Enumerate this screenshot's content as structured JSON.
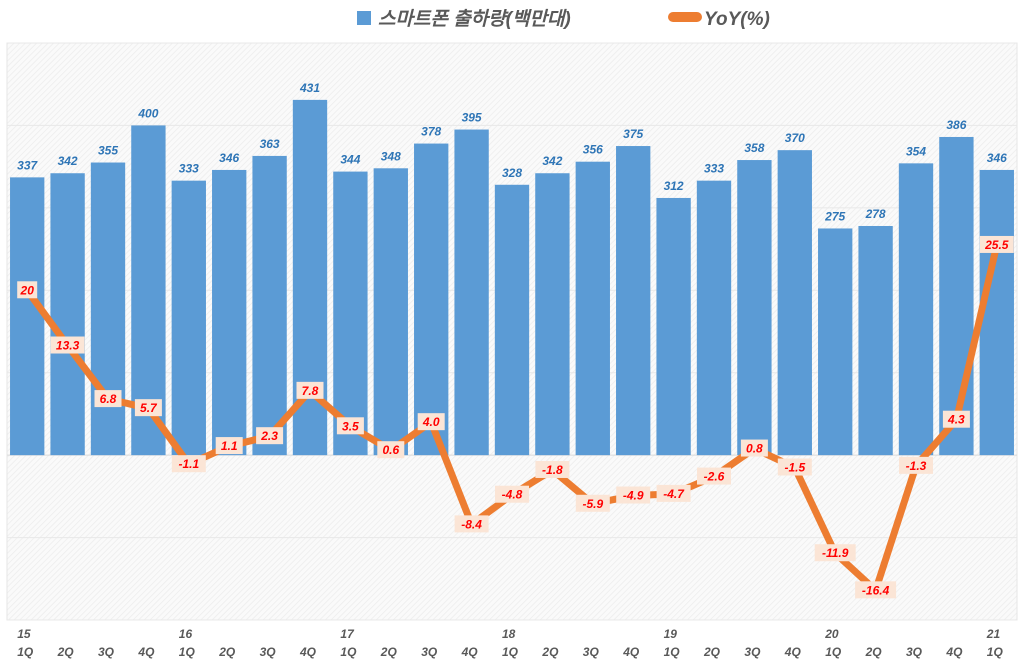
{
  "chart_data": {
    "type": "bar+line",
    "title": "",
    "legend": {
      "placement": "top",
      "entries": [
        "스마트폰 출하량(백만대)",
        "YoY(%)"
      ]
    },
    "categories": [
      "1Q",
      "2Q",
      "3Q",
      "4Q",
      "1Q",
      "2Q",
      "3Q",
      "4Q",
      "1Q",
      "2Q",
      "3Q",
      "4Q",
      "1Q",
      "2Q",
      "3Q",
      "4Q",
      "1Q",
      "2Q",
      "3Q",
      "4Q",
      "1Q",
      "2Q",
      "3Q",
      "4Q",
      "1Q"
    ],
    "year_labels": [
      "15",
      "",
      "",
      "",
      "16",
      "",
      "",
      "",
      "17",
      "",
      "",
      "",
      "18",
      "",
      "",
      "",
      "19",
      "",
      "",
      "",
      "20",
      "",
      "",
      "",
      "21"
    ],
    "series": [
      {
        "name": "스마트폰 출하량(백만대)",
        "type": "bar",
        "axis": "primary",
        "color": "#5b9bd5",
        "values": [
          337,
          342,
          355,
          400,
          333,
          346,
          363,
          431,
          344,
          348,
          378,
          395,
          328,
          342,
          356,
          375,
          312,
          333,
          358,
          370,
          275,
          278,
          354,
          386,
          346
        ]
      },
      {
        "name": "YoY(%)",
        "type": "line",
        "axis": "secondary",
        "color": "#ed7d31",
        "values": [
          20,
          13.3,
          6.8,
          5.7,
          -1.1,
          1.1,
          2.3,
          7.8,
          3.5,
          0.6,
          4.0,
          -8.4,
          -4.8,
          -1.8,
          -5.9,
          -4.9,
          -4.7,
          -2.6,
          0.8,
          -1.5,
          -11.9,
          -16.4,
          -1.3,
          4.3,
          25.5
        ],
        "labels": [
          "20",
          "13.3",
          "6.8",
          "5.7",
          "-1.1",
          "1.1",
          "2.3",
          "7.8",
          "3.5",
          "0.6",
          "4.0",
          "-8.4",
          "-4.8",
          "-1.8",
          "-5.9",
          "-4.9",
          "-4.7",
          "-2.6",
          "0.8",
          "-1.5",
          "-11.9",
          "-16.4",
          "-1.3",
          "4.3",
          "25.5"
        ]
      }
    ],
    "primary_ylim": [
      -200,
      500
    ],
    "secondary_ylim": [
      -20,
      50
    ],
    "grid": true,
    "colors": {
      "bar_label": "#2e75b6",
      "line_label": "#ff0000",
      "line_label_bg": "#fbe5d6",
      "axis_text": "#595959"
    }
  }
}
